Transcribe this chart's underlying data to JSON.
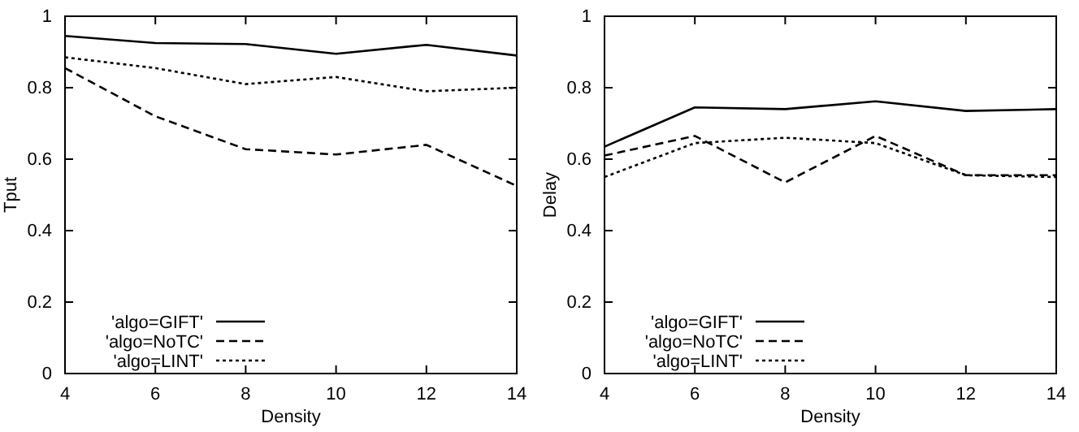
{
  "chart_data": [
    {
      "type": "line",
      "xlabel": "Density",
      "ylabel": "Tput",
      "x": [
        4,
        6,
        8,
        10,
        12,
        14
      ],
      "xlim": [
        4,
        14
      ],
      "xticks": [
        4,
        6,
        8,
        10,
        12,
        14
      ],
      "ylim": [
        0,
        1
      ],
      "yticks": [
        0,
        0.2,
        0.4,
        0.6,
        0.8,
        1
      ],
      "legend": "bottom left",
      "grid": false,
      "marker": "none",
      "series": [
        {
          "name": "'algo=GIFT'",
          "color": "#000000",
          "line_style": "solid",
          "values": [
            0.945,
            0.925,
            0.922,
            0.895,
            0.92,
            0.89
          ]
        },
        {
          "name": "'algo=NoTC'",
          "color": "#000000",
          "line_style": "dashed",
          "values": [
            0.855,
            0.72,
            0.628,
            0.613,
            0.64,
            0.525
          ]
        },
        {
          "name": "'algo=LINT'",
          "color": "#000000",
          "line_style": "dotted",
          "values": [
            0.885,
            0.855,
            0.81,
            0.83,
            0.79,
            0.8
          ]
        }
      ]
    },
    {
      "type": "line",
      "xlabel": "Density",
      "ylabel": "Delay",
      "x": [
        4,
        6,
        8,
        10,
        12,
        14
      ],
      "xlim": [
        4,
        14
      ],
      "xticks": [
        4,
        6,
        8,
        10,
        12,
        14
      ],
      "ylim": [
        0,
        1
      ],
      "yticks": [
        0,
        0.2,
        0.4,
        0.6,
        0.8,
        1
      ],
      "legend": "bottom left",
      "grid": false,
      "marker": "none",
      "series": [
        {
          "name": "'algo=GIFT'",
          "color": "#000000",
          "line_style": "solid",
          "values": [
            0.635,
            0.745,
            0.74,
            0.762,
            0.735,
            0.74
          ]
        },
        {
          "name": "'algo=NoTC'",
          "color": "#000000",
          "line_style": "dashed",
          "values": [
            0.61,
            0.665,
            0.535,
            0.665,
            0.555,
            0.555
          ]
        },
        {
          "name": "'algo=LINT'",
          "color": "#000000",
          "line_style": "dotted",
          "values": [
            0.55,
            0.645,
            0.66,
            0.645,
            0.555,
            0.55
          ]
        }
      ]
    }
  ]
}
